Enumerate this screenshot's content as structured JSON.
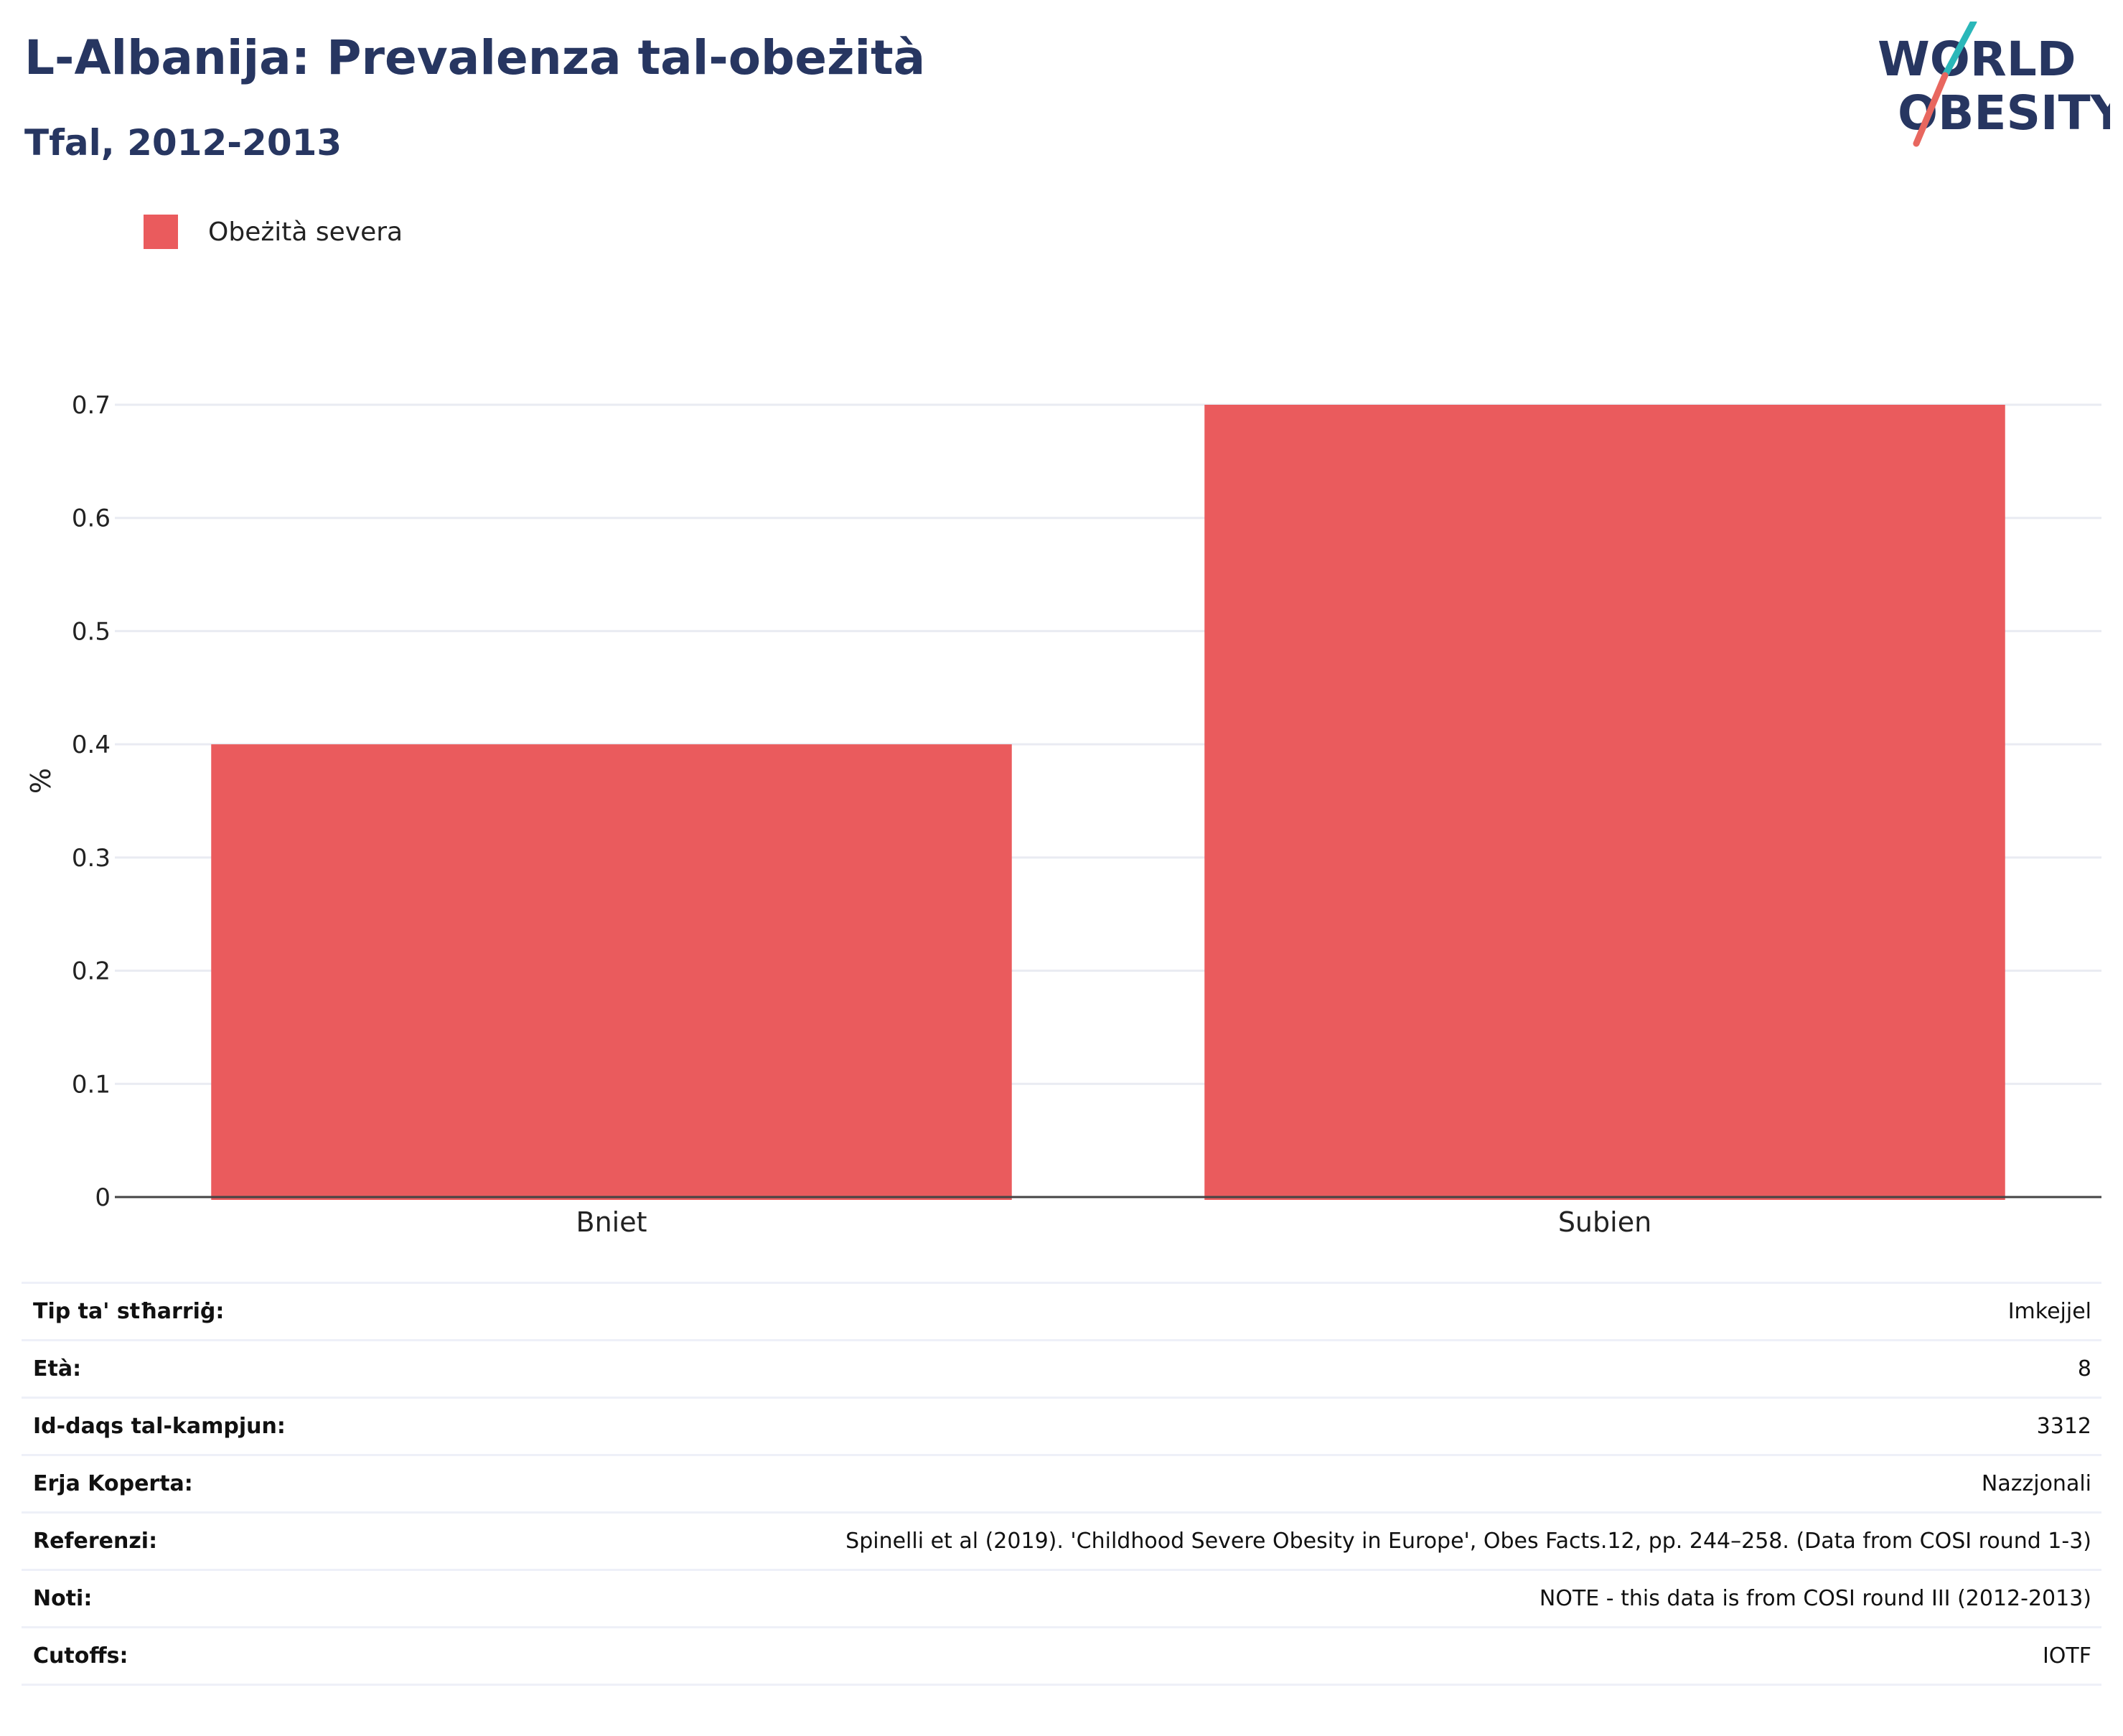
{
  "header": {
    "title": "L-Albanija: Prevalenza tal-obeżità",
    "subtitle": "Tfal, 2012-2013"
  },
  "logo": {
    "line1": "WORLD",
    "line2": "OBESITY",
    "text_color": "#273661",
    "accent_teal": "#2ab7b9",
    "accent_coral": "#e8675f"
  },
  "legend": {
    "label": "Obeżità severa",
    "color": "#ea5b5d"
  },
  "chart_data": {
    "type": "bar",
    "categories": [
      "Bniet",
      "Subien"
    ],
    "series": [
      {
        "name": "Obeżità severa",
        "values": [
          0.4,
          0.7
        ],
        "color": "#ea5b5d"
      }
    ],
    "ylabel": "%",
    "ylim": [
      0,
      0.7
    ],
    "yticks": [
      "0",
      "0.1",
      "0.2",
      "0.3",
      "0.4",
      "0.5",
      "0.6",
      "0.7"
    ],
    "grid": true,
    "legend_position": "top-left"
  },
  "info_table": [
    {
      "label": "Tip ta' stħarriġ:",
      "value": "Imkejjel"
    },
    {
      "label": "Età:",
      "value": "8"
    },
    {
      "label": "Id-daqs tal-kampjun:",
      "value": "3312"
    },
    {
      "label": "Erja Koperta:",
      "value": "Nazzjonali"
    },
    {
      "label": "Referenzi:",
      "value": "Spinelli et al (2019). 'Childhood Severe Obesity in Europe', Obes Facts.12, pp. 244–258. (Data from COSI round 1-3)"
    },
    {
      "label": "Noti:",
      "value": "NOTE - this data is from COSI round III (2012-2013)"
    },
    {
      "label": "Cutoffs:",
      "value": "IOTF"
    }
  ]
}
